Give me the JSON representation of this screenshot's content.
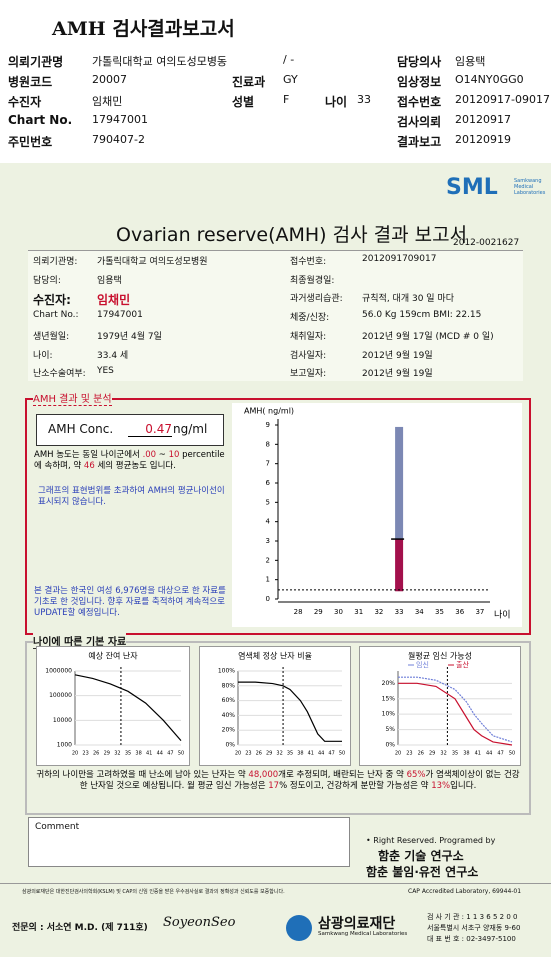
{
  "header": {
    "title": "AMH 검사결과보고서",
    "institution_note": "/ -",
    "fields": [
      {
        "label": "의뢰기관명",
        "value": "가톨릭대학교 여의도성모병동"
      },
      {
        "label": "담당의사",
        "value": "임용택"
      },
      {
        "label": "병원코드",
        "value": "20007"
      },
      {
        "label": "진료과",
        "value": "GY"
      },
      {
        "label": "임상정보",
        "value": "O14NY0GG0"
      },
      {
        "label": "수진자",
        "value": "임채민"
      },
      {
        "label": "성별",
        "value": "F"
      },
      {
        "label": "나이",
        "value": "33"
      },
      {
        "label": "접수번호",
        "value": "20120917-09017"
      },
      {
        "label": "Chart No.",
        "value": "17947001"
      },
      {
        "label": "검사의뢰",
        "value": "20120917"
      },
      {
        "label": "주민번호",
        "value": "790407-2"
      },
      {
        "label": "결과보고",
        "value": "20120919"
      }
    ]
  },
  "report": {
    "logo": "SML",
    "logo_sub": "Samkwang Medical Laboratories",
    "title": "Ovarian reserve(AMH) 검사 결과 보고서",
    "doc_no": "2012-0021627",
    "left": [
      {
        "label": "의뢰기관명:",
        "value": "가톨릭대학교 여의도성모병원"
      },
      {
        "label": "담당의:",
        "value": "임용택"
      },
      {
        "label": "수진자:",
        "value": "임채민"
      },
      {
        "label": "Chart No.:",
        "value": "17947001"
      },
      {
        "label": "생년월일:",
        "value": "1979년 4월 7일"
      },
      {
        "label": "나이:",
        "value": "33.4 세"
      },
      {
        "label": "난소수술여부:",
        "value": "YES"
      }
    ],
    "right": [
      {
        "label": "접수번호:",
        "value": "2012091709017"
      },
      {
        "label": "최종월경일:"
      },
      {
        "label": "과거생리습관:",
        "value": "규칙적, 대개  30 일 마다"
      },
      {
        "label": "체중/신장:",
        "value": "56.0 Kg   159cm   BMI: 22.15"
      },
      {
        "label": "채취일자:",
        "value": "2012년 9월 17일   (MCD # 0 일)"
      },
      {
        "label": "검사일자:",
        "value": "2012년 9월 19일"
      },
      {
        "label": "보고일자:",
        "value": "2012년 9월 19일"
      }
    ]
  },
  "amh": {
    "section_title": "AMH 결과 및 분석",
    "conc_label": "AMH Conc.",
    "conc_value": 0.47,
    "conc_unit": "ng/ml",
    "para1": [
      "AMH 농도는 동일 나이군에서",
      ".00",
      "~",
      "10",
      "percentile에 속하며, 약",
      "46",
      "세의 평균농도 입니다."
    ],
    "para2": "그래프의 표현범위를 초과하여 AMH의 평균나이선이 표시되지 않습니다.",
    "para3": "본 결과는 한국인 여성 6,976명을 대상으로 한 자료를 기초로 한 것입니다. 향후 자료를 축적하여 계속적으로 UPDATE할 예정입니다.",
    "chart": {
      "type": "bar",
      "y_label": "AMH( ng/ml)",
      "x_label": "나이",
      "ylim": [
        0,
        9
      ],
      "yticks": [
        0,
        1,
        2,
        3,
        4,
        5,
        6,
        7,
        8,
        9
      ],
      "xlim": [
        27.5,
        37.5
      ],
      "xticks": [
        28,
        29,
        30,
        31,
        32,
        33,
        34,
        35,
        36,
        37
      ],
      "bars": [
        {
          "x": 33,
          "low": 3.1,
          "high": 8.9,
          "color": "#7c88b4"
        },
        {
          "x": 33,
          "low": 0.4,
          "high": 3.1,
          "color": "#a3104c"
        }
      ],
      "patient_line": 0.47
    }
  },
  "basic": {
    "section_title": "나이에 따른 기본 자료",
    "charts": [
      {
        "type": "line",
        "title": "예상 잔여 난자",
        "log_y": true,
        "ylim": [
          1000,
          1000000
        ],
        "yticks": [
          1000,
          10000,
          100000,
          1000000
        ],
        "xlim": [
          20,
          50
        ],
        "xticks": [
          20,
          23,
          26,
          29,
          32,
          35,
          38,
          41,
          44,
          47,
          50
        ],
        "age_line": 33,
        "x": [
          20,
          25,
          30,
          35,
          40,
          45,
          50
        ],
        "series": [
          {
            "color": "#000000",
            "values": [
              700000,
              500000,
              300000,
              150000,
              50000,
              10000,
              1500
            ]
          }
        ]
      },
      {
        "type": "line",
        "title": "염색체 정상 난자 비율",
        "ylim": [
          0,
          100
        ],
        "yticks": [
          {
            "value": 0,
            "label": "0%"
          },
          {
            "value": 20,
            "label": "20%"
          },
          {
            "value": 40,
            "label": "40%"
          },
          {
            "value": 60,
            "label": "60%"
          },
          {
            "value": 80,
            "label": "80%"
          },
          {
            "value": 100,
            "label": "100%"
          }
        ],
        "xlim": [
          20,
          50
        ],
        "xticks": [
          20,
          23,
          26,
          29,
          32,
          35,
          38,
          41,
          44,
          47,
          50
        ],
        "age_line": 33,
        "x": [
          20,
          25,
          30,
          33,
          35,
          38,
          40,
          43,
          45,
          50
        ],
        "series": [
          {
            "color": "#000000",
            "values": [
              85,
              85,
              83,
              80,
              75,
              60,
              45,
              15,
              5,
              5
            ]
          }
        ]
      },
      {
        "type": "line",
        "title": "월평균 임신 가능성",
        "ylim": [
          0,
          24
        ],
        "yticks": [
          {
            "value": 0,
            "label": "0%"
          },
          {
            "value": 5,
            "label": "5%"
          },
          {
            "value": 10,
            "label": "10%"
          },
          {
            "value": 15,
            "label": "15%"
          },
          {
            "value": 20,
            "label": "20%"
          }
        ],
        "xlim": [
          20,
          50
        ],
        "xticks": [
          20,
          23,
          26,
          29,
          32,
          35,
          38,
          41,
          44,
          47,
          50
        ],
        "age_line": 33,
        "x": [
          20,
          25,
          30,
          35,
          38,
          40,
          42,
          45,
          50
        ],
        "series": [
          {
            "name": "임신",
            "color": "#6f7fd8",
            "values": [
              22,
              22,
              21,
              18,
              14,
              10,
              7,
              3,
              1
            ]
          },
          {
            "name": "출산",
            "color": "#c8102e",
            "values": [
              20,
              20,
              19,
              15,
              9,
              5,
              3,
              1,
              0
            ]
          }
        ]
      }
    ],
    "summary": [
      "귀하의 나이만을 고려하였을 때 난소에 남아 있는 난자는 약",
      "48,000",
      "개로 추정되며, 배란되는 난자 중 약",
      "65%",
      "가 염색체이상이 없는 건강한 난자일 것으로 예상됩니다. 월 평균 임신 가능성은",
      "17",
      "% 정도이고, 건강하게 분만할 가능성은 약",
      "13%",
      "입니다."
    ]
  },
  "footer": {
    "comment": "Comment",
    "credits": [
      "• Right Reserved. Programed by",
      "함춘 기술 연구소",
      "함춘 불임·유전 연구소"
    ],
    "note": "삼광의료재단은 대한진단검사의학회(KSLM) 및 CAP의 신임 인증을 받은 우수검사실로 결과의 정확성과 신뢰도를 보증합니다.",
    "cap": "CAP Accredited Laboratory, 69944-01",
    "doctor": "전문의 : 서소연 M.D. (제 711호)",
    "signature": "SoyeonSeo",
    "org": "삼광의료재단",
    "org_en": "Samkwang Medical Laboratories",
    "lab_info": [
      "검 사 기 관 : 1 1 3 6 5 2 0 0",
      "서울특별시 서초구 양재동 9-60",
      "대 표 번 호 : 02-3497-5100"
    ]
  }
}
